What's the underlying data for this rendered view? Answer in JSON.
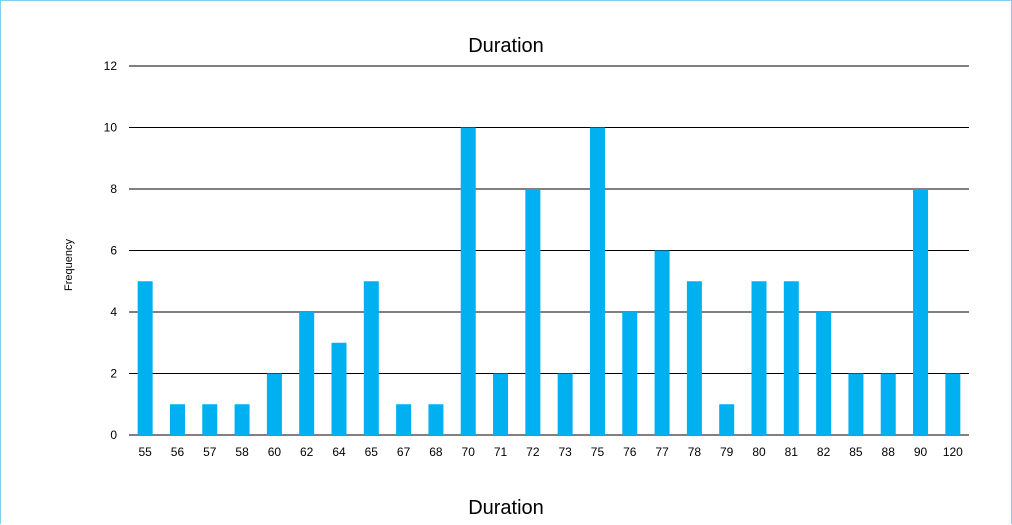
{
  "chart_data": {
    "type": "bar",
    "title": "Duration",
    "xlabel": "Duration",
    "ylabel": "Frequency",
    "ylim": [
      0,
      12
    ],
    "yticks": [
      0,
      2,
      4,
      6,
      8,
      10,
      12
    ],
    "grid": true,
    "bar_color": "#00b0f0",
    "categories": [
      "55",
      "56",
      "57",
      "58",
      "60",
      "62",
      "64",
      "65",
      "67",
      "68",
      "70",
      "71",
      "72",
      "73",
      "75",
      "76",
      "77",
      "78",
      "79",
      "80",
      "81",
      "82",
      "85",
      "88",
      "90",
      "120"
    ],
    "values": [
      5,
      1,
      1,
      1,
      2,
      4,
      3,
      5,
      1,
      1,
      10,
      2,
      8,
      2,
      10,
      4,
      6,
      5,
      1,
      5,
      5,
      4,
      2,
      2,
      8,
      2
    ]
  }
}
